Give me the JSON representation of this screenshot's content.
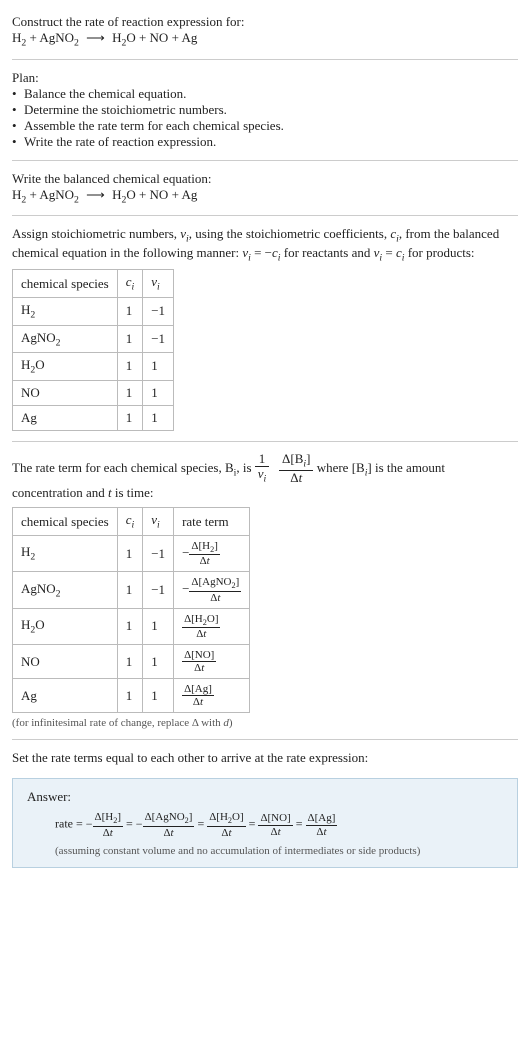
{
  "intro": {
    "title": "Construct the rate of reaction expression for:",
    "equation_html": "H<sub>2</sub> + AgNO<sub>2</sub> <span class='arrow'>⟶</span> H<sub>2</sub>O + NO + Ag"
  },
  "plan": {
    "heading": "Plan:",
    "items": [
      "Balance the chemical equation.",
      "Determine the stoichiometric numbers.",
      "Assemble the rate term for each chemical species.",
      "Write the rate of reaction expression."
    ]
  },
  "balanced": {
    "heading": "Write the balanced chemical equation:",
    "equation_html": "H<sub>2</sub> + AgNO<sub>2</sub> <span class='arrow'>⟶</span> H<sub>2</sub>O + NO + Ag"
  },
  "stoich": {
    "heading_html": "Assign stoichiometric numbers, <span class='italic'>ν<sub>i</sub></span>, using the stoichiometric coefficients, <span class='italic'>c<sub>i</sub></span>, from the balanced chemical equation in the following manner: <span class='italic'>ν<sub>i</sub></span> = −<span class='italic'>c<sub>i</sub></span> for reactants and <span class='italic'>ν<sub>i</sub></span> = <span class='italic'>c<sub>i</sub></span> for products:",
    "headers": {
      "c1": "chemical species",
      "c2_html": "<span class='italic'>c<sub>i</sub></span>",
      "c3_html": "<span class='italic'>ν<sub>i</sub></span>"
    },
    "rows": [
      {
        "sp_html": "H<sub>2</sub>",
        "c": "1",
        "v": "−1"
      },
      {
        "sp_html": "AgNO<sub>2</sub>",
        "c": "1",
        "v": "−1"
      },
      {
        "sp_html": "H<sub>2</sub>O",
        "c": "1",
        "v": "1"
      },
      {
        "sp_html": "NO",
        "c": "1",
        "v": "1"
      },
      {
        "sp_html": "Ag",
        "c": "1",
        "v": "1"
      }
    ]
  },
  "rateterm": {
    "heading_pre": "The rate term for each chemical species, B",
    "heading_sub": "i",
    "heading_mid": ", is ",
    "frac1_num_html": "1",
    "frac1_den_html": "<span class='italic'>ν<sub>i</sub></span>",
    "frac2_num_html": "Δ[B<sub><span class='italic'>i</span></sub>]",
    "frac2_den_html": "Δ<span class='italic'>t</span>",
    "heading_post_html": " where [B<sub><span class='italic'>i</span></sub>] is the amount concentration and <span class='italic'>t</span> is time:",
    "headers": {
      "c1": "chemical species",
      "c2_html": "<span class='italic'>c<sub>i</sub></span>",
      "c3_html": "<span class='italic'>ν<sub>i</sub></span>",
      "c4": "rate term"
    },
    "rows": [
      {
        "sp_html": "H<sub>2</sub>",
        "c": "1",
        "v": "−1",
        "neg": "−",
        "num_html": "Δ[H<sub>2</sub>]",
        "den_html": "Δ<span class='italic'>t</span>"
      },
      {
        "sp_html": "AgNO<sub>2</sub>",
        "c": "1",
        "v": "−1",
        "neg": "−",
        "num_html": "Δ[AgNO<sub>2</sub>]",
        "den_html": "Δ<span class='italic'>t</span>"
      },
      {
        "sp_html": "H<sub>2</sub>O",
        "c": "1",
        "v": "1",
        "neg": "",
        "num_html": "Δ[H<sub>2</sub>O]",
        "den_html": "Δ<span class='italic'>t</span>"
      },
      {
        "sp_html": "NO",
        "c": "1",
        "v": "1",
        "neg": "",
        "num_html": "Δ[NO]",
        "den_html": "Δ<span class='italic'>t</span>"
      },
      {
        "sp_html": "Ag",
        "c": "1",
        "v": "1",
        "neg": "",
        "num_html": "Δ[Ag]",
        "den_html": "Δ<span class='italic'>t</span>"
      }
    ],
    "note_html": "(for infinitesimal rate of change, replace Δ with <span class='italic'>d</span>)"
  },
  "final": {
    "heading": "Set the rate terms equal to each other to arrive at the rate expression:"
  },
  "answer": {
    "label": "Answer:",
    "prefix": "rate = ",
    "terms": [
      {
        "neg": "−",
        "num_html": "Δ[H<sub>2</sub>]",
        "den_html": "Δ<span class='italic'>t</span>"
      },
      {
        "neg": "−",
        "num_html": "Δ[AgNO<sub>2</sub>]",
        "den_html": "Δ<span class='italic'>t</span>"
      },
      {
        "neg": "",
        "num_html": "Δ[H<sub>2</sub>O]",
        "den_html": "Δ<span class='italic'>t</span>"
      },
      {
        "neg": "",
        "num_html": "Δ[NO]",
        "den_html": "Δ<span class='italic'>t</span>"
      },
      {
        "neg": "",
        "num_html": "Δ[Ag]",
        "den_html": "Δ<span class='italic'>t</span>"
      }
    ],
    "assume": "(assuming constant volume and no accumulation of intermediates or side products)"
  }
}
